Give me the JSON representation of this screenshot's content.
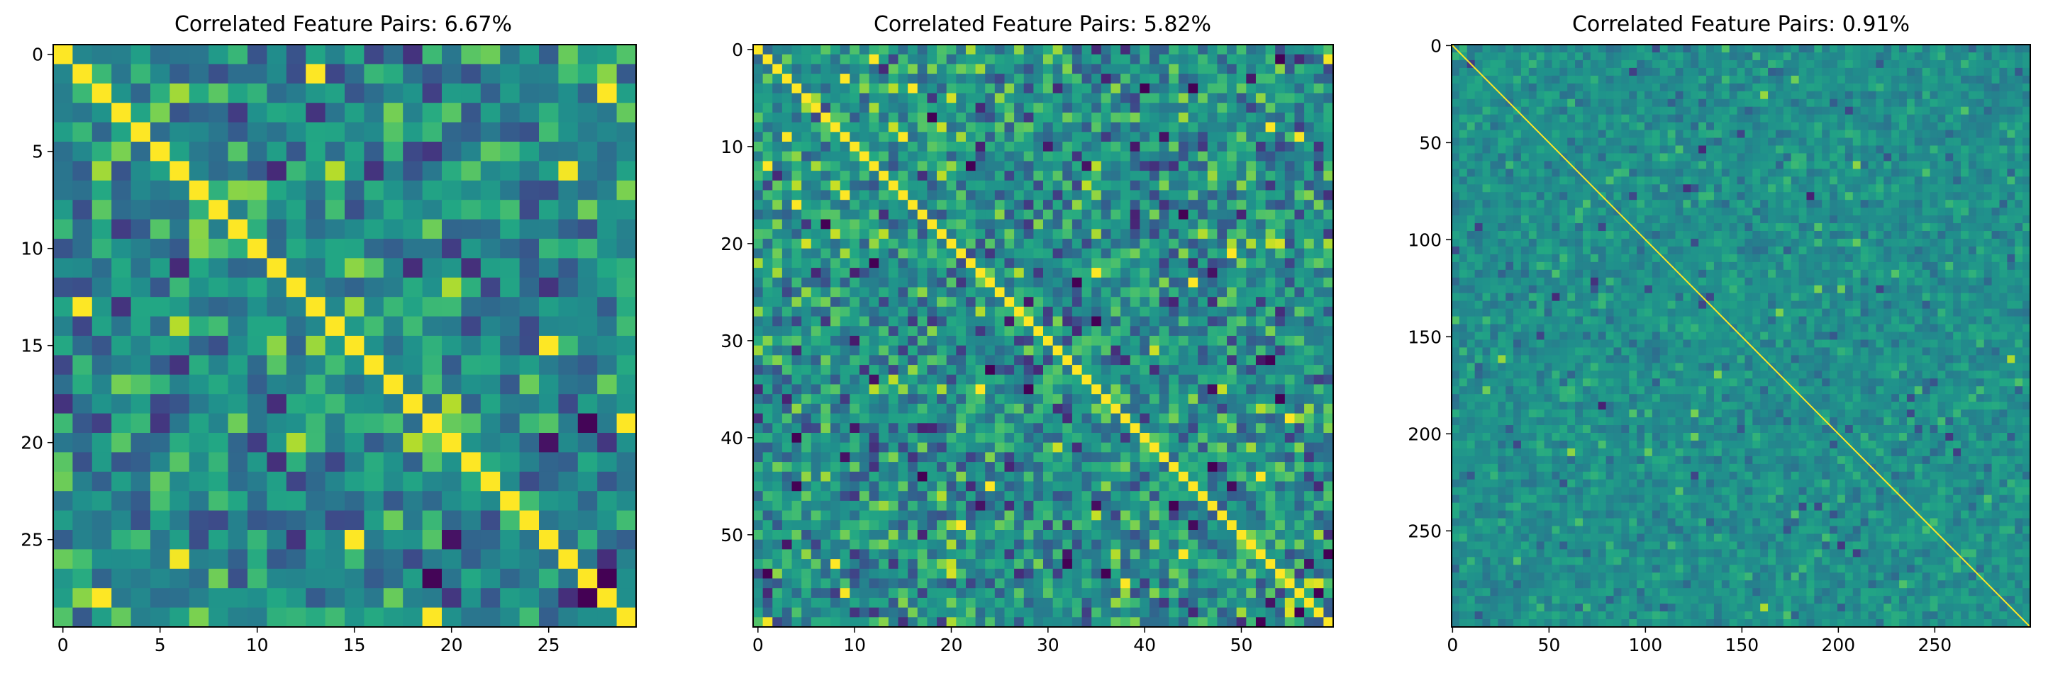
{
  "chart_data": [
    {
      "type": "heatmap",
      "title": "Correlated Feature Pairs: 6.67%",
      "n": 30,
      "seed": 11,
      "block": 1,
      "xticks": [
        0,
        5,
        10,
        15,
        20,
        25
      ],
      "yticks": [
        0,
        5,
        10,
        15,
        20,
        25
      ],
      "colormap": "viridis",
      "value_range": [
        -1,
        1
      ],
      "diagonal_value": 1
    },
    {
      "type": "heatmap",
      "title": "Correlated Feature Pairs: 5.82%",
      "n": 60,
      "seed": 23,
      "block": 1,
      "xticks": [
        0,
        10,
        20,
        30,
        40,
        50
      ],
      "yticks": [
        0,
        10,
        20,
        30,
        40,
        50
      ],
      "colormap": "viridis",
      "value_range": [
        -1,
        1
      ],
      "diagonal_value": 1
    },
    {
      "type": "heatmap",
      "title": "Correlated Feature Pairs: 0.91%",
      "n": 300,
      "seed": 37,
      "block": 4,
      "xticks": [
        0,
        50,
        100,
        150,
        200,
        250
      ],
      "yticks": [
        0,
        50,
        100,
        150,
        200,
        250
      ],
      "colormap": "viridis",
      "value_range": [
        -1,
        1
      ],
      "diagonal_value": 1
    }
  ]
}
